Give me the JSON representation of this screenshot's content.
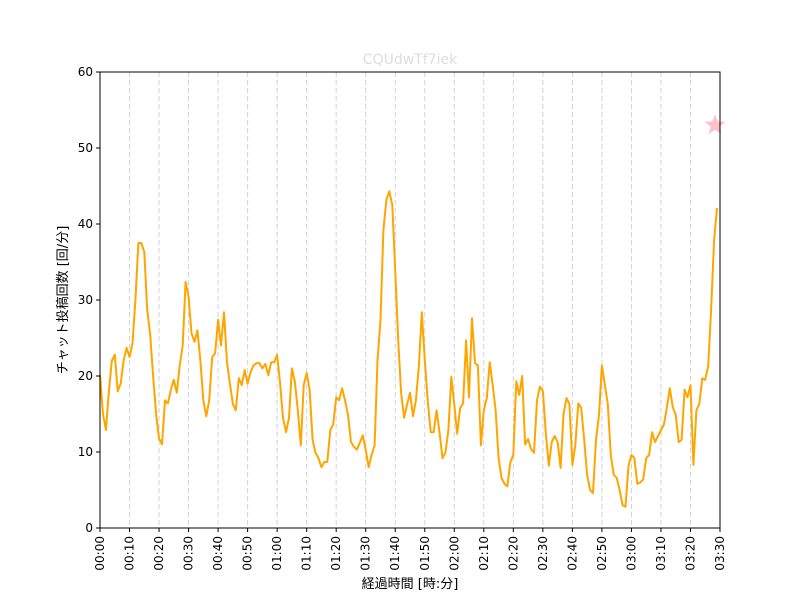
{
  "chart_data": {
    "type": "line",
    "title": "CQUdwTf7iek",
    "xlabel": "経過時間 [時:分]",
    "ylabel": "チャット投稿回数 [回/分]",
    "xlim_minutes": [
      0,
      210
    ],
    "ylim": [
      0,
      60
    ],
    "yticks": [
      0,
      10,
      20,
      30,
      40,
      50,
      60
    ],
    "xticks": [
      "00:00",
      "00:10",
      "00:20",
      "00:30",
      "00:40",
      "00:50",
      "01:00",
      "01:10",
      "01:20",
      "01:30",
      "01:40",
      "01:50",
      "02:00",
      "02:10",
      "02:20",
      "02:30",
      "02:40",
      "02:50",
      "03:00",
      "03:10",
      "03:20",
      "03:30"
    ],
    "grid": "vertical dashed at x ticks",
    "x_unit": "minutes elapsed (1 point per minute)",
    "values": [
      20.1,
      15,
      12.9,
      18,
      22,
      22.8,
      18,
      19,
      22,
      23.7,
      22.5,
      24.3,
      30,
      37.5,
      37.5,
      36.3,
      28.7,
      25.4,
      20,
      15,
      11.8,
      11,
      16.8,
      16.4,
      18.2,
      19.5,
      17.8,
      21.4,
      24,
      32.4,
      30.4,
      25.6,
      24.5,
      26,
      22,
      16.8,
      14.7,
      16.8,
      22.5,
      23,
      27.4,
      24,
      28.4,
      21.8,
      19,
      16.3,
      15.5,
      19.7,
      18.8,
      20.8,
      19,
      20.5,
      21.4,
      21.7,
      21.7,
      21,
      21.6,
      20.1,
      21.8,
      21.8,
      22.8,
      19,
      14.5,
      12.6,
      14.5,
      21,
      19.2,
      15.5,
      10.9,
      18.8,
      20.4,
      18.2,
      11.6,
      9.9,
      9.2,
      8,
      8.7,
      8.7,
      12.9,
      13.6,
      17.2,
      16.8,
      18.4,
      16.8,
      14.9,
      11.3,
      10.7,
      10.3,
      11.2,
      12.2,
      10.3,
      8,
      9.6,
      10.9,
      22,
      27.4,
      39.2,
      43.2,
      44.3,
      42.5,
      34,
      24.7,
      17.8,
      14.5,
      16.2,
      17.8,
      14.7,
      16.8,
      21.4,
      28.4,
      22.1,
      16.8,
      12.6,
      12.6,
      15.5,
      12.6,
      9.2,
      9.9,
      12.9,
      19.9,
      16.2,
      12.4,
      15.8,
      16.4,
      24.7,
      17.2,
      27.6,
      21.7,
      21.4,
      10.9,
      15.5,
      17.1,
      21.8,
      18.8,
      15.5,
      9.2,
      6.6,
      5.8,
      5.5,
      8.7,
      9.6,
      19.3,
      17.5,
      20,
      11,
      11.7,
      10.4,
      9.9,
      16.8,
      18.6,
      18,
      12.5,
      8.2,
      11.3,
      12.1,
      11.3,
      7.9,
      15,
      17.1,
      16.3,
      8.3,
      10.9,
      16.4,
      15.8,
      11.6,
      7,
      5,
      4.6,
      11.6,
      14.9,
      21.4,
      18.8,
      16.3,
      9.6,
      7,
      6.6,
      5,
      3,
      2.8,
      8.2,
      9.6,
      9.2,
      5.8,
      6,
      6.4,
      9.2,
      9.6,
      12.6,
      11.3,
      12.1,
      12.9,
      13.6,
      15.9,
      18.4,
      15.9,
      14.9,
      11.3,
      11.6,
      18.2,
      17.2,
      18.8,
      8.3,
      15.5,
      16.3,
      19.7,
      19.5,
      21.3,
      28.7,
      37.9,
      42.1
    ],
    "highlight_marker": {
      "shape": "star",
      "x_minutes": 208.3,
      "y": 53
    },
    "colors": {
      "line": "#ffa500",
      "marker": "#ffc0cb",
      "title": "#dddddd",
      "grid": "#d3d3d3"
    }
  }
}
